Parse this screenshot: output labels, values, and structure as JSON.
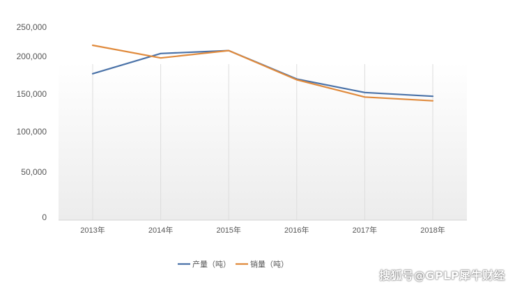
{
  "chart_data": {
    "type": "line",
    "categories": [
      "2013年",
      "2014年",
      "2015年",
      "2016年",
      "2017年",
      "2018年"
    ],
    "series": [
      {
        "name": "产量（吨）",
        "color": "#4a72a8",
        "values": [
          177000,
          205000,
          210000,
          170000,
          152000,
          147000
        ]
      },
      {
        "name": "销量（吨）",
        "color": "#e08a3c",
        "values": [
          219000,
          198000,
          210000,
          169000,
          146000,
          141000
        ]
      }
    ],
    "y_ticks": [
      {
        "value": 0,
        "label": "0"
      },
      {
        "value": 50000,
        "label": "50,000"
      },
      {
        "value": 100000,
        "label": "100,000"
      },
      {
        "value": 150000,
        "label": "150,000"
      },
      {
        "value": 200000,
        "label": "200,000"
      },
      {
        "value": 250000,
        "label": "250,000"
      }
    ],
    "ylim": [
      0,
      250000
    ],
    "legend_position": "bottom",
    "grid": "vertical"
  },
  "watermark": "搜狐号@GPLP犀牛财经"
}
